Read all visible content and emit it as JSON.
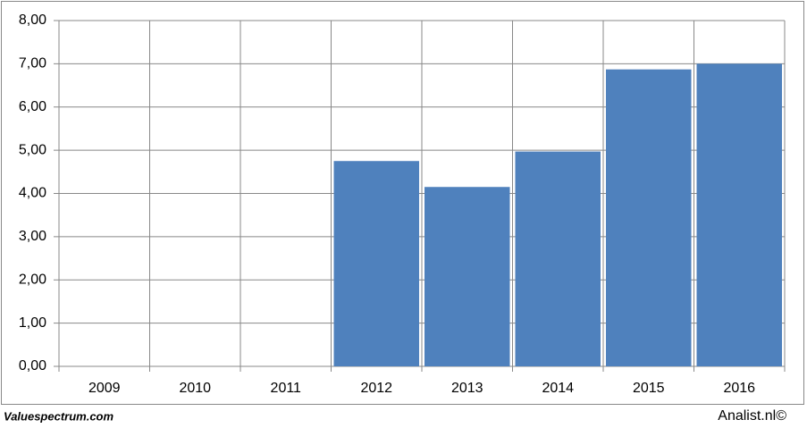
{
  "chart_data": {
    "type": "bar",
    "categories": [
      "2009",
      "2010",
      "2011",
      "2012",
      "2013",
      "2014",
      "2015",
      "2016"
    ],
    "values": [
      null,
      null,
      null,
      4.75,
      4.15,
      4.97,
      6.87,
      7.0
    ],
    "color": "#4f81bd",
    "ylim": [
      0,
      8
    ],
    "yticks": [
      {
        "value": 0,
        "label": "0,00"
      },
      {
        "value": 1,
        "label": "1,00"
      },
      {
        "value": 2,
        "label": "2,00"
      },
      {
        "value": 3,
        "label": "3,00"
      },
      {
        "value": 4,
        "label": "4,00"
      },
      {
        "value": 5,
        "label": "5,00"
      },
      {
        "value": 6,
        "label": "6,00"
      },
      {
        "value": 7,
        "label": "7,00"
      },
      {
        "value": 8,
        "label": "8,00"
      }
    ],
    "grid": true,
    "source": "Valuespectrum.com",
    "credit": "Analist.nl©"
  }
}
